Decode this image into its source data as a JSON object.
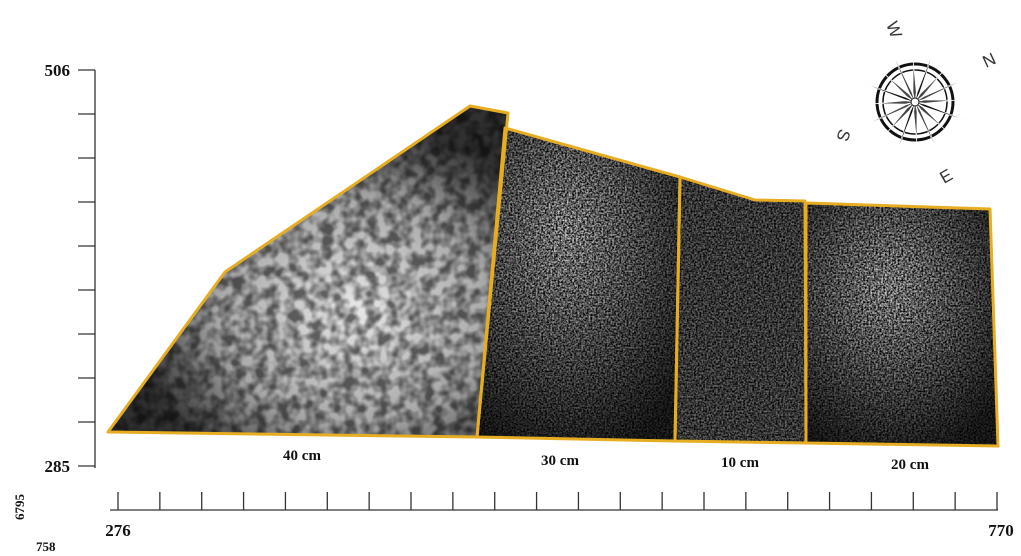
{
  "axes": {
    "y_top": "506",
    "y_bottom": "285",
    "x_left": "276",
    "x_right": "770",
    "corner_vertical": "6795",
    "corner_bottom": "758"
  },
  "regions": [
    {
      "label": "40 cm"
    },
    {
      "label": "30 cm"
    },
    {
      "label": "10 cm"
    },
    {
      "label": "20 cm"
    }
  ],
  "compass": {
    "labels": [
      "W",
      "N",
      "S",
      "E"
    ]
  }
}
